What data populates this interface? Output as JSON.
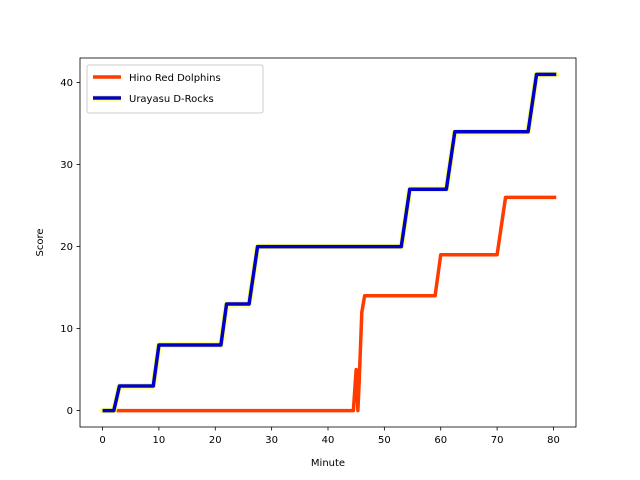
{
  "chart_data": {
    "type": "line",
    "xlabel": "Minute",
    "ylabel": "Score",
    "xlim": [
      -4,
      84
    ],
    "ylim": [
      -2,
      43
    ],
    "xticks": [
      0,
      10,
      20,
      30,
      40,
      50,
      60,
      70,
      80
    ],
    "yticks": [
      0,
      10,
      20,
      30,
      40
    ],
    "legend": "upper-left",
    "grid": false,
    "series": [
      {
        "name": "Hino Red Dolphins",
        "color": "#ff3b00",
        "outline": "none",
        "x": [
          2.5,
          44.5,
          45.0,
          45.3,
          45.5,
          46.0,
          46.5,
          59.0,
          60.0,
          70.0,
          71.5,
          80.5
        ],
        "y": [
          0,
          0,
          5,
          0,
          3,
          12,
          14,
          14,
          19,
          19,
          26,
          26
        ]
      },
      {
        "name": "Urayasu D-Rocks",
        "color": "#0000cc",
        "outline": "#ffff66",
        "x": [
          0,
          2,
          3,
          9,
          10,
          21,
          22,
          26,
          27.5,
          53,
          54.5,
          61,
          62.5,
          75.5,
          77,
          80.5
        ],
        "y": [
          0,
          0,
          3,
          3,
          8,
          8,
          13,
          13,
          20,
          20,
          27,
          27,
          34,
          34,
          41,
          41
        ]
      }
    ]
  }
}
